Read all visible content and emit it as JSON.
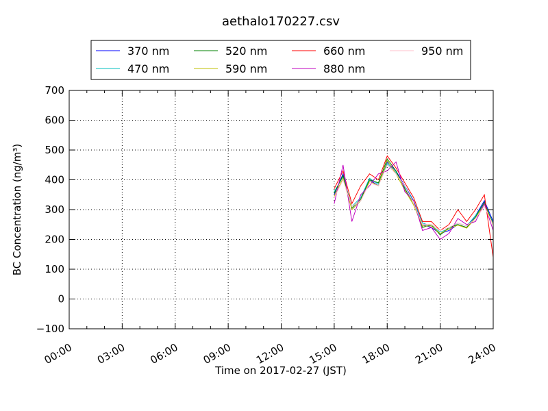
{
  "chart_data": {
    "type": "line",
    "title": "aethalo170227.csv",
    "xlabel": "Time on 2017-02-27 (JST)",
    "ylabel": "BC Concentration (ng/m³)",
    "xlim_hours": [
      0,
      24
    ],
    "ylim": [
      -100,
      700
    ],
    "x_ticks": [
      "00:00",
      "03:00",
      "06:00",
      "09:00",
      "12:00",
      "15:00",
      "18:00",
      "21:00",
      "24:00"
    ],
    "y_ticks": [
      -100,
      0,
      100,
      200,
      300,
      400,
      500,
      600,
      700
    ],
    "grid": true,
    "legend_position": "top",
    "series": [
      {
        "name": "370 nm",
        "color": "#0000ff",
        "times": [
          "15:00",
          "15:30",
          "16:00",
          "16:30",
          "17:00",
          "17:30",
          "18:00",
          "18:30",
          "19:00",
          "19:30",
          "20:00",
          "20:30",
          "21:00",
          "21:30",
          "22:00",
          "22:30",
          "23:00",
          "23:30",
          "24:00"
        ],
        "values": [
          350,
          420,
          300,
          330,
          400,
          380,
          460,
          430,
          380,
          330,
          250,
          240,
          220,
          230,
          250,
          240,
          280,
          330,
          260
        ]
      },
      {
        "name": "470 nm",
        "color": "#00bfbf",
        "times": [
          "15:00",
          "15:30",
          "16:00",
          "16:30",
          "17:00",
          "17:30",
          "18:00",
          "18:30",
          "19:00",
          "19:30",
          "20:00",
          "20:30",
          "21:00",
          "21:30",
          "22:00",
          "22:30",
          "23:00",
          "23:30",
          "24:00"
        ],
        "values": [
          360,
          410,
          310,
          340,
          405,
          385,
          455,
          425,
          375,
          330,
          255,
          245,
          225,
          235,
          255,
          245,
          280,
          320,
          255
        ]
      },
      {
        "name": "520 nm",
        "color": "#008000",
        "times": [
          "15:00",
          "15:30",
          "16:00",
          "16:30",
          "17:00",
          "17:30",
          "18:00",
          "18:30",
          "19:00",
          "19:30",
          "20:00",
          "20:30",
          "21:00",
          "21:30",
          "22:00",
          "22:30",
          "23:00",
          "23:30",
          "24:00"
        ],
        "values": [
          355,
          415,
          305,
          335,
          400,
          390,
          470,
          430,
          370,
          320,
          240,
          250,
          215,
          240,
          250,
          240,
          275,
          325,
          250
        ]
      },
      {
        "name": "590 nm",
        "color": "#bfbf00",
        "times": [
          "15:00",
          "15:30",
          "16:00",
          "16:30",
          "17:00",
          "17:30",
          "18:00",
          "18:30",
          "19:00",
          "19:30",
          "20:00",
          "20:30",
          "21:00",
          "21:30",
          "22:00",
          "22:30",
          "23:00",
          "23:30",
          "24:00"
        ],
        "values": [
          345,
          405,
          300,
          330,
          395,
          380,
          465,
          420,
          365,
          315,
          245,
          245,
          220,
          235,
          248,
          238,
          270,
          318,
          248
        ]
      },
      {
        "name": "660 nm",
        "color": "#ff0000",
        "times": [
          "15:00",
          "15:30",
          "16:00",
          "16:30",
          "17:00",
          "17:30",
          "18:00",
          "18:30",
          "19:00",
          "19:30",
          "20:00",
          "20:30",
          "21:00",
          "21:30",
          "22:00",
          "22:30",
          "23:00",
          "23:30",
          "24:00"
        ],
        "values": [
          370,
          430,
          320,
          380,
          420,
          400,
          480,
          440,
          390,
          340,
          260,
          260,
          230,
          250,
          300,
          260,
          300,
          350,
          140
        ]
      },
      {
        "name": "880 nm",
        "color": "#bf00bf",
        "times": [
          "15:00",
          "15:30",
          "16:00",
          "16:30",
          "17:00",
          "17:30",
          "18:00",
          "18:30",
          "19:00",
          "19:30",
          "20:00",
          "20:30",
          "21:00",
          "21:30",
          "22:00",
          "22:30",
          "23:00",
          "23:30",
          "24:00"
        ],
        "values": [
          320,
          450,
          260,
          350,
          380,
          420,
          430,
          460,
          360,
          330,
          230,
          240,
          200,
          220,
          270,
          250,
          260,
          320,
          230
        ]
      },
      {
        "name": "950 nm",
        "color": "#ffc0cb",
        "times": [
          "15:00",
          "15:30",
          "16:00",
          "16:30",
          "17:00",
          "17:30",
          "18:00",
          "18:30",
          "19:00",
          "19:30",
          "20:00",
          "20:30",
          "21:00",
          "21:30",
          "22:00",
          "22:30",
          "23:00",
          "23:30",
          "24:00"
        ],
        "values": [
          340,
          400,
          310,
          330,
          390,
          380,
          450,
          420,
          380,
          320,
          250,
          250,
          230,
          240,
          255,
          245,
          270,
          310,
          250
        ]
      }
    ]
  }
}
